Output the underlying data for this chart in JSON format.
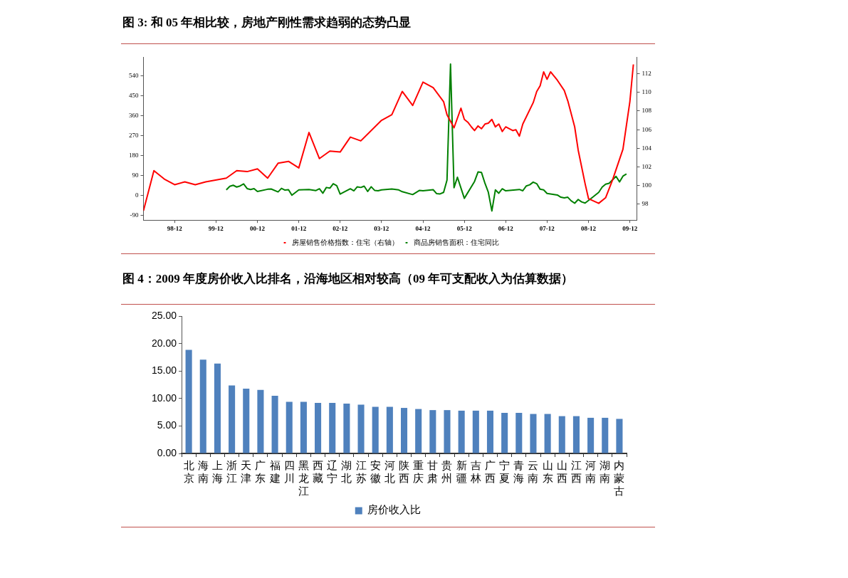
{
  "chart_data": [
    {
      "type": "line",
      "title": "图 3: 和 05 年相比较，房地产刚性需求趋弱的态势凸显",
      "xlim": [
        "1998-03",
        "2010-02"
      ],
      "xticks": [
        {
          "value": "1998-12",
          "label": "98-12"
        },
        {
          "value": "1999-12",
          "label": "99-12"
        },
        {
          "value": "2000-12",
          "label": "00-12"
        },
        {
          "value": "2001-12",
          "label": "01-12"
        },
        {
          "value": "2002-12",
          "label": "02-12"
        },
        {
          "value": "2003-12",
          "label": "03-12"
        },
        {
          "value": "2004-12",
          "label": "04-12"
        },
        {
          "value": "2005-12",
          "label": "05-12"
        },
        {
          "value": "2006-12",
          "label": "06-12"
        },
        {
          "value": "2007-12",
          "label": "07-12"
        },
        {
          "value": "2008-12",
          "label": "08-12"
        },
        {
          "value": "2009-12",
          "label": "09-12"
        }
      ],
      "ylim": [
        -110,
        625
      ],
      "yticks": [
        -90,
        0,
        90,
        180,
        270,
        360,
        450,
        540
      ],
      "y2lim": [
        96.3,
        113.8
      ],
      "y2ticks": [
        98,
        100,
        102,
        104,
        106,
        108,
        110,
        112
      ],
      "series": [
        {
          "name": "房屋销售价格指数：住宅（右轴）",
          "color": "#ff0000",
          "axis": "y2",
          "x": [
            "1998-03",
            "1998-06",
            "1998-09",
            "1998-12",
            "1999-03",
            "1999-06",
            "1999-09",
            "2000-03",
            "2000-06",
            "2000-09",
            "2000-12",
            "2001-03",
            "2001-06",
            "2001-09",
            "2001-12",
            "2002-03",
            "2002-06",
            "2002-09",
            "2002-12",
            "2003-03",
            "2003-06",
            "2003-12",
            "2004-03",
            "2004-06",
            "2004-09",
            "2004-12",
            "2005-03",
            "2005-06",
            "2005-07",
            "2005-09",
            "2005-11",
            "2005-12",
            "2006-01",
            "2006-02",
            "2006-03",
            "2006-04",
            "2006-05",
            "2006-06",
            "2006-07",
            "2006-08",
            "2006-09",
            "2006-10",
            "2006-11",
            "2006-12",
            "2007-02",
            "2007-03",
            "2007-04",
            "2007-05",
            "2007-08",
            "2007-09",
            "2007-10",
            "2007-11",
            "2007-12",
            "2008-01",
            "2008-03",
            "2008-05",
            "2008-06",
            "2008-08",
            "2008-09",
            "2008-11",
            "2008-12",
            "2009-03",
            "2009-05",
            "2009-07",
            "2009-10",
            "2009-12",
            "2010-01"
          ],
          "values": [
            97.3,
            101.6,
            100.7,
            100.1,
            100.4,
            100.1,
            100.4,
            100.8,
            101.6,
            101.5,
            101.8,
            100.8,
            102.4,
            102.6,
            101.9,
            105.7,
            102.9,
            103.7,
            103.6,
            105.2,
            104.8,
            107.0,
            107.6,
            110.1,
            108.6,
            111.1,
            110.5,
            109.0,
            107.6,
            106.2,
            108.3,
            107.1,
            106.8,
            106.3,
            105.9,
            106.4,
            106.1,
            106.6,
            106.7,
            107.1,
            106.3,
            106.6,
            105.8,
            106.3,
            105.9,
            106.0,
            105.3,
            106.6,
            108.9,
            110.1,
            110.7,
            112.2,
            111.4,
            112.2,
            111.3,
            110.2,
            109.1,
            106.3,
            103.8,
            100.2,
            98.6,
            98.1,
            98.7,
            100.6,
            103.9,
            109.0,
            113.0
          ]
        },
        {
          "name": "商品房销售面积：住宅同比",
          "color": "#008000",
          "x": [
            "2000-03",
            "2000-04",
            "2000-05",
            "2000-06",
            "2000-07",
            "2000-08",
            "2000-09",
            "2000-10",
            "2000-11",
            "2000-12",
            "2001-03",
            "2001-04",
            "2001-06",
            "2001-07",
            "2001-08",
            "2001-09",
            "2001-10",
            "2001-12",
            "2002-03",
            "2002-05",
            "2002-06",
            "2002-07",
            "2002-08",
            "2002-09",
            "2002-10",
            "2002-11",
            "2002-12",
            "2003-03",
            "2003-04",
            "2003-05",
            "2003-06",
            "2003-07",
            "2003-08",
            "2003-09",
            "2003-10",
            "2003-11",
            "2003-12",
            "2004-03",
            "2004-05",
            "2004-06",
            "2004-09",
            "2004-11",
            "2004-12",
            "2005-03",
            "2005-04",
            "2005-05",
            "2005-06",
            "2005-07",
            "2005-08",
            "2005-09",
            "2005-10",
            "2005-12",
            "2006-03",
            "2006-04",
            "2006-05",
            "2006-06",
            "2006-07",
            "2006-08",
            "2006-09",
            "2006-10",
            "2006-11",
            "2006-12",
            "2007-04",
            "2007-05",
            "2007-06",
            "2007-07",
            "2007-08",
            "2007-09",
            "2007-10",
            "2007-11",
            "2007-12",
            "2008-03",
            "2008-04",
            "2008-05",
            "2008-06",
            "2008-07",
            "2008-08",
            "2008-09",
            "2008-10",
            "2008-11",
            "2009-01",
            "2009-03",
            "2009-04",
            "2009-05",
            "2009-06",
            "2009-08",
            "2009-09",
            "2009-10",
            "2009-11"
          ],
          "values": [
            26,
            42,
            47,
            39,
            44,
            53,
            32,
            28,
            32,
            19,
            29,
            30,
            17,
            33,
            25,
            27,
            2,
            26,
            28,
            23,
            31,
            11,
            37,
            34,
            54,
            45,
            7,
            31,
            22,
            40,
            37,
            43,
            19,
            40,
            24,
            22,
            26,
            30,
            26,
            18,
            5,
            24,
            22,
            27,
            9,
            8,
            15,
            70,
            593,
            36,
            83,
            -12,
            64,
            107,
            105,
            56,
            15,
            -69,
            26,
            11,
            31,
            22,
            28,
            22,
            44,
            49,
            61,
            54,
            29,
            26,
            10,
            3,
            -7,
            -10,
            -7,
            -23,
            -34,
            -17,
            -28,
            -33,
            -9,
            15,
            39,
            52,
            56,
            87,
            62,
            88,
            98
          ]
        }
      ],
      "legend": "bottom",
      "marker": "none",
      "line_style": "solid",
      "grid": false
    },
    {
      "type": "bar",
      "title": "图 4：2009 年度房价收入比排名，沿海地区相对较高（09 年可支配收入为估算数据）",
      "categories": [
        "北京",
        "海南",
        "上海",
        "浙江",
        "天津",
        "广东",
        "福建",
        "四川",
        "黑龙江",
        "西藏",
        "辽宁",
        "湖北",
        "江苏",
        "安徽",
        "河北",
        "陕西",
        "重庆",
        "甘肃",
        "贵州",
        "新疆",
        "吉林",
        "广西",
        "宁夏",
        "青海",
        "云南",
        "山东",
        "山西",
        "江西",
        "河南",
        "湖南",
        "内蒙古"
      ],
      "series": [
        {
          "name": "房价收入比",
          "color": "#4f81bd",
          "values": [
            18.9,
            17.1,
            16.4,
            12.4,
            11.8,
            11.6,
            10.5,
            9.4,
            9.4,
            9.2,
            9.2,
            9.1,
            8.9,
            8.5,
            8.5,
            8.3,
            8.1,
            7.9,
            7.9,
            7.8,
            7.8,
            7.8,
            7.4,
            7.4,
            7.2,
            7.2,
            6.8,
            6.8,
            6.5,
            6.5,
            6.3
          ]
        }
      ],
      "ylim": [
        0,
        25
      ],
      "yticks": [
        {
          "value": 0,
          "label": "0.00"
        },
        {
          "value": 5,
          "label": "5.00"
        },
        {
          "value": 10,
          "label": "10.00"
        },
        {
          "value": 15,
          "label": "15.00"
        },
        {
          "value": 20,
          "label": "20.00"
        },
        {
          "value": 25,
          "label": "25.00"
        }
      ],
      "legend": "bottom",
      "grid": false
    }
  ]
}
